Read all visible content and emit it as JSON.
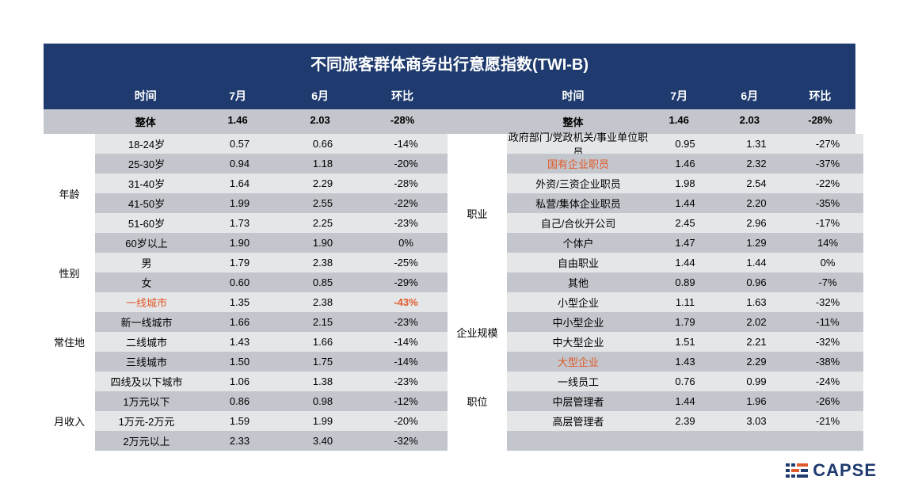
{
  "title": "不同旅客群体商务出行意愿指数(TWI-B)",
  "colors": {
    "header_bg": "#1e3a6e",
    "header_fg": "#ffffff",
    "row_light": "#e5e6e8",
    "row_dark": "#c3c6cc",
    "highlight": "#e05a2b",
    "text": "#000000",
    "background": "#ffffff"
  },
  "fonts": {
    "title_pt": 20,
    "header_pt": 14,
    "body_pt": 13
  },
  "columns_left": [
    "时间",
    "7月",
    "6月",
    "环比"
  ],
  "columns_right": [
    "时间",
    "7月",
    "6月",
    "环比"
  ],
  "total_left": {
    "label": "整体",
    "jul": "1.46",
    "jun": "2.03",
    "mom": "-28%"
  },
  "total_right": {
    "label": "整体",
    "jul": "1.46",
    "jun": "2.03",
    "mom": "-28%"
  },
  "left_groups": [
    {
      "name": "年龄",
      "rows": [
        {
          "sub": "18-24岁",
          "jul": "0.57",
          "jun": "0.66",
          "mom": "-14%"
        },
        {
          "sub": "25-30岁",
          "jul": "0.94",
          "jun": "1.18",
          "mom": "-20%"
        },
        {
          "sub": "31-40岁",
          "jul": "1.64",
          "jun": "2.29",
          "mom": "-28%"
        },
        {
          "sub": "41-50岁",
          "jul": "1.99",
          "jun": "2.55",
          "mom": "-22%"
        },
        {
          "sub": "51-60岁",
          "jul": "1.73",
          "jun": "2.25",
          "mom": "-23%"
        },
        {
          "sub": "60岁以上",
          "jul": "1.90",
          "jun": "1.90",
          "mom": "0%"
        }
      ]
    },
    {
      "name": "性别",
      "rows": [
        {
          "sub": "男",
          "jul": "1.79",
          "jun": "2.38",
          "mom": "-25%"
        },
        {
          "sub": "女",
          "jul": "0.60",
          "jun": "0.85",
          "mom": "-29%"
        }
      ]
    },
    {
      "name": "常住地",
      "rows": [
        {
          "sub": "一线城市",
          "jul": "1.35",
          "jun": "2.38",
          "mom": "-43%",
          "sub_hl": true,
          "mom_hl": true
        },
        {
          "sub": "新一线城市",
          "jul": "1.66",
          "jun": "2.15",
          "mom": "-23%"
        },
        {
          "sub": "二线城市",
          "jul": "1.43",
          "jun": "1.66",
          "mom": "-14%"
        },
        {
          "sub": "三线城市",
          "jul": "1.50",
          "jun": "1.75",
          "mom": "-14%"
        },
        {
          "sub": "四线及以下城市",
          "jul": "1.06",
          "jun": "1.38",
          "mom": "-23%"
        }
      ]
    },
    {
      "name": "月收入",
      "rows": [
        {
          "sub": "1万元以下",
          "jul": "0.86",
          "jun": "0.98",
          "mom": "-12%"
        },
        {
          "sub": "1万元-2万元",
          "jul": "1.59",
          "jun": "1.99",
          "mom": "-20%"
        },
        {
          "sub": "2万元以上",
          "jul": "2.33",
          "jun": "3.40",
          "mom": "-32%"
        }
      ]
    }
  ],
  "right_groups": [
    {
      "name": "职业",
      "rows": [
        {
          "sub": "政府部门/党政机关/事业单位职员",
          "jul": "0.95",
          "jun": "1.31",
          "mom": "-27%"
        },
        {
          "sub": "国有企业职员",
          "jul": "1.46",
          "jun": "2.32",
          "mom": "-37%",
          "sub_hl": true
        },
        {
          "sub": "外资/三资企业职员",
          "jul": "1.98",
          "jun": "2.54",
          "mom": "-22%"
        },
        {
          "sub": "私营/集体企业职员",
          "jul": "1.44",
          "jun": "2.20",
          "mom": "-35%"
        },
        {
          "sub": "自己/合伙开公司",
          "jul": "2.45",
          "jun": "2.96",
          "mom": "-17%"
        },
        {
          "sub": "个体户",
          "jul": "1.47",
          "jun": "1.29",
          "mom": "14%"
        },
        {
          "sub": "自由职业",
          "jul": "1.44",
          "jun": "1.44",
          "mom": "0%"
        },
        {
          "sub": "其他",
          "jul": "0.89",
          "jun": "0.96",
          "mom": "-7%"
        }
      ]
    },
    {
      "name": "企业规模",
      "rows": [
        {
          "sub": "小型企业",
          "jul": "1.11",
          "jun": "1.63",
          "mom": "-32%"
        },
        {
          "sub": "中小型企业",
          "jul": "1.79",
          "jun": "2.02",
          "mom": "-11%"
        },
        {
          "sub": "中大型企业",
          "jul": "1.51",
          "jun": "2.21",
          "mom": "-32%"
        },
        {
          "sub": "大型企业",
          "jul": "1.43",
          "jun": "2.29",
          "mom": "-38%",
          "sub_hl": true
        }
      ]
    },
    {
      "name": "职位",
      "rows": [
        {
          "sub": "一线员工",
          "jul": "0.76",
          "jun": "0.99",
          "mom": "-24%"
        },
        {
          "sub": "中层管理者",
          "jul": "1.44",
          "jun": "1.96",
          "mom": "-26%"
        },
        {
          "sub": "高层管理者",
          "jul": "2.39",
          "jun": "3.03",
          "mom": "-21%"
        }
      ]
    }
  ],
  "logo": {
    "text": "CAPSE",
    "bar_colors": {
      "navy": "#1e3a6e",
      "orange": "#e05a2b"
    }
  }
}
